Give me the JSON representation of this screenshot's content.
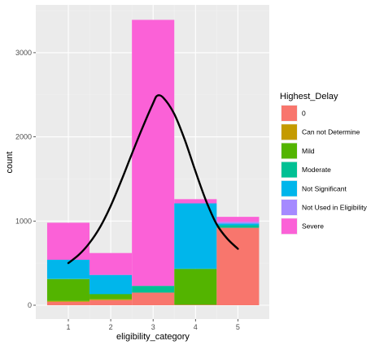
{
  "chart_data": {
    "type": "bar",
    "stacked": true,
    "xlabel": "eligibility_category",
    "ylabel": "count",
    "categories": [
      "1",
      "2",
      "3",
      "4",
      "5"
    ],
    "x_ticks": [
      "1",
      "2",
      "3",
      "4",
      "5"
    ],
    "y_ticks": [
      "0",
      "1000",
      "2000",
      "3000"
    ],
    "ylim": [
      0,
      3500
    ],
    "grid": true,
    "legend_position": "right",
    "legend_title": "Highest_Delay",
    "series": [
      {
        "name": "0",
        "color": "#F8766D",
        "values": [
          40,
          60,
          150,
          5,
          920
        ]
      },
      {
        "name": "Can not Determine",
        "color": "#C49A00",
        "values": [
          10,
          10,
          0,
          0,
          0
        ]
      },
      {
        "name": "Mild",
        "color": "#53B400",
        "values": [
          260,
          60,
          0,
          425,
          0
        ]
      },
      {
        "name": "Moderate",
        "color": "#00C094",
        "values": [
          5,
          5,
          80,
          5,
          30
        ]
      },
      {
        "name": "Not Significant",
        "color": "#00B6EB",
        "values": [
          225,
          225,
          0,
          775,
          20
        ]
      },
      {
        "name": "Not Used in Eligibility",
        "color": "#A58AFF",
        "values": [
          0,
          0,
          0,
          0,
          20
        ]
      },
      {
        "name": "Severe",
        "color": "#FB61D7",
        "values": [
          440,
          260,
          3160,
          50,
          60
        ]
      }
    ],
    "overlay_curve": {
      "type": "line",
      "color": "#000000",
      "x": [
        1,
        1.25,
        1.5,
        1.75,
        2,
        2.25,
        2.5,
        2.75,
        3,
        3.1,
        3.25,
        3.5,
        3.75,
        4,
        4.25,
        4.5,
        4.75,
        5
      ],
      "y": [
        500,
        600,
        740,
        930,
        1180,
        1480,
        1800,
        2110,
        2400,
        2490,
        2460,
        2270,
        1960,
        1590,
        1240,
        960,
        790,
        670
      ]
    }
  }
}
